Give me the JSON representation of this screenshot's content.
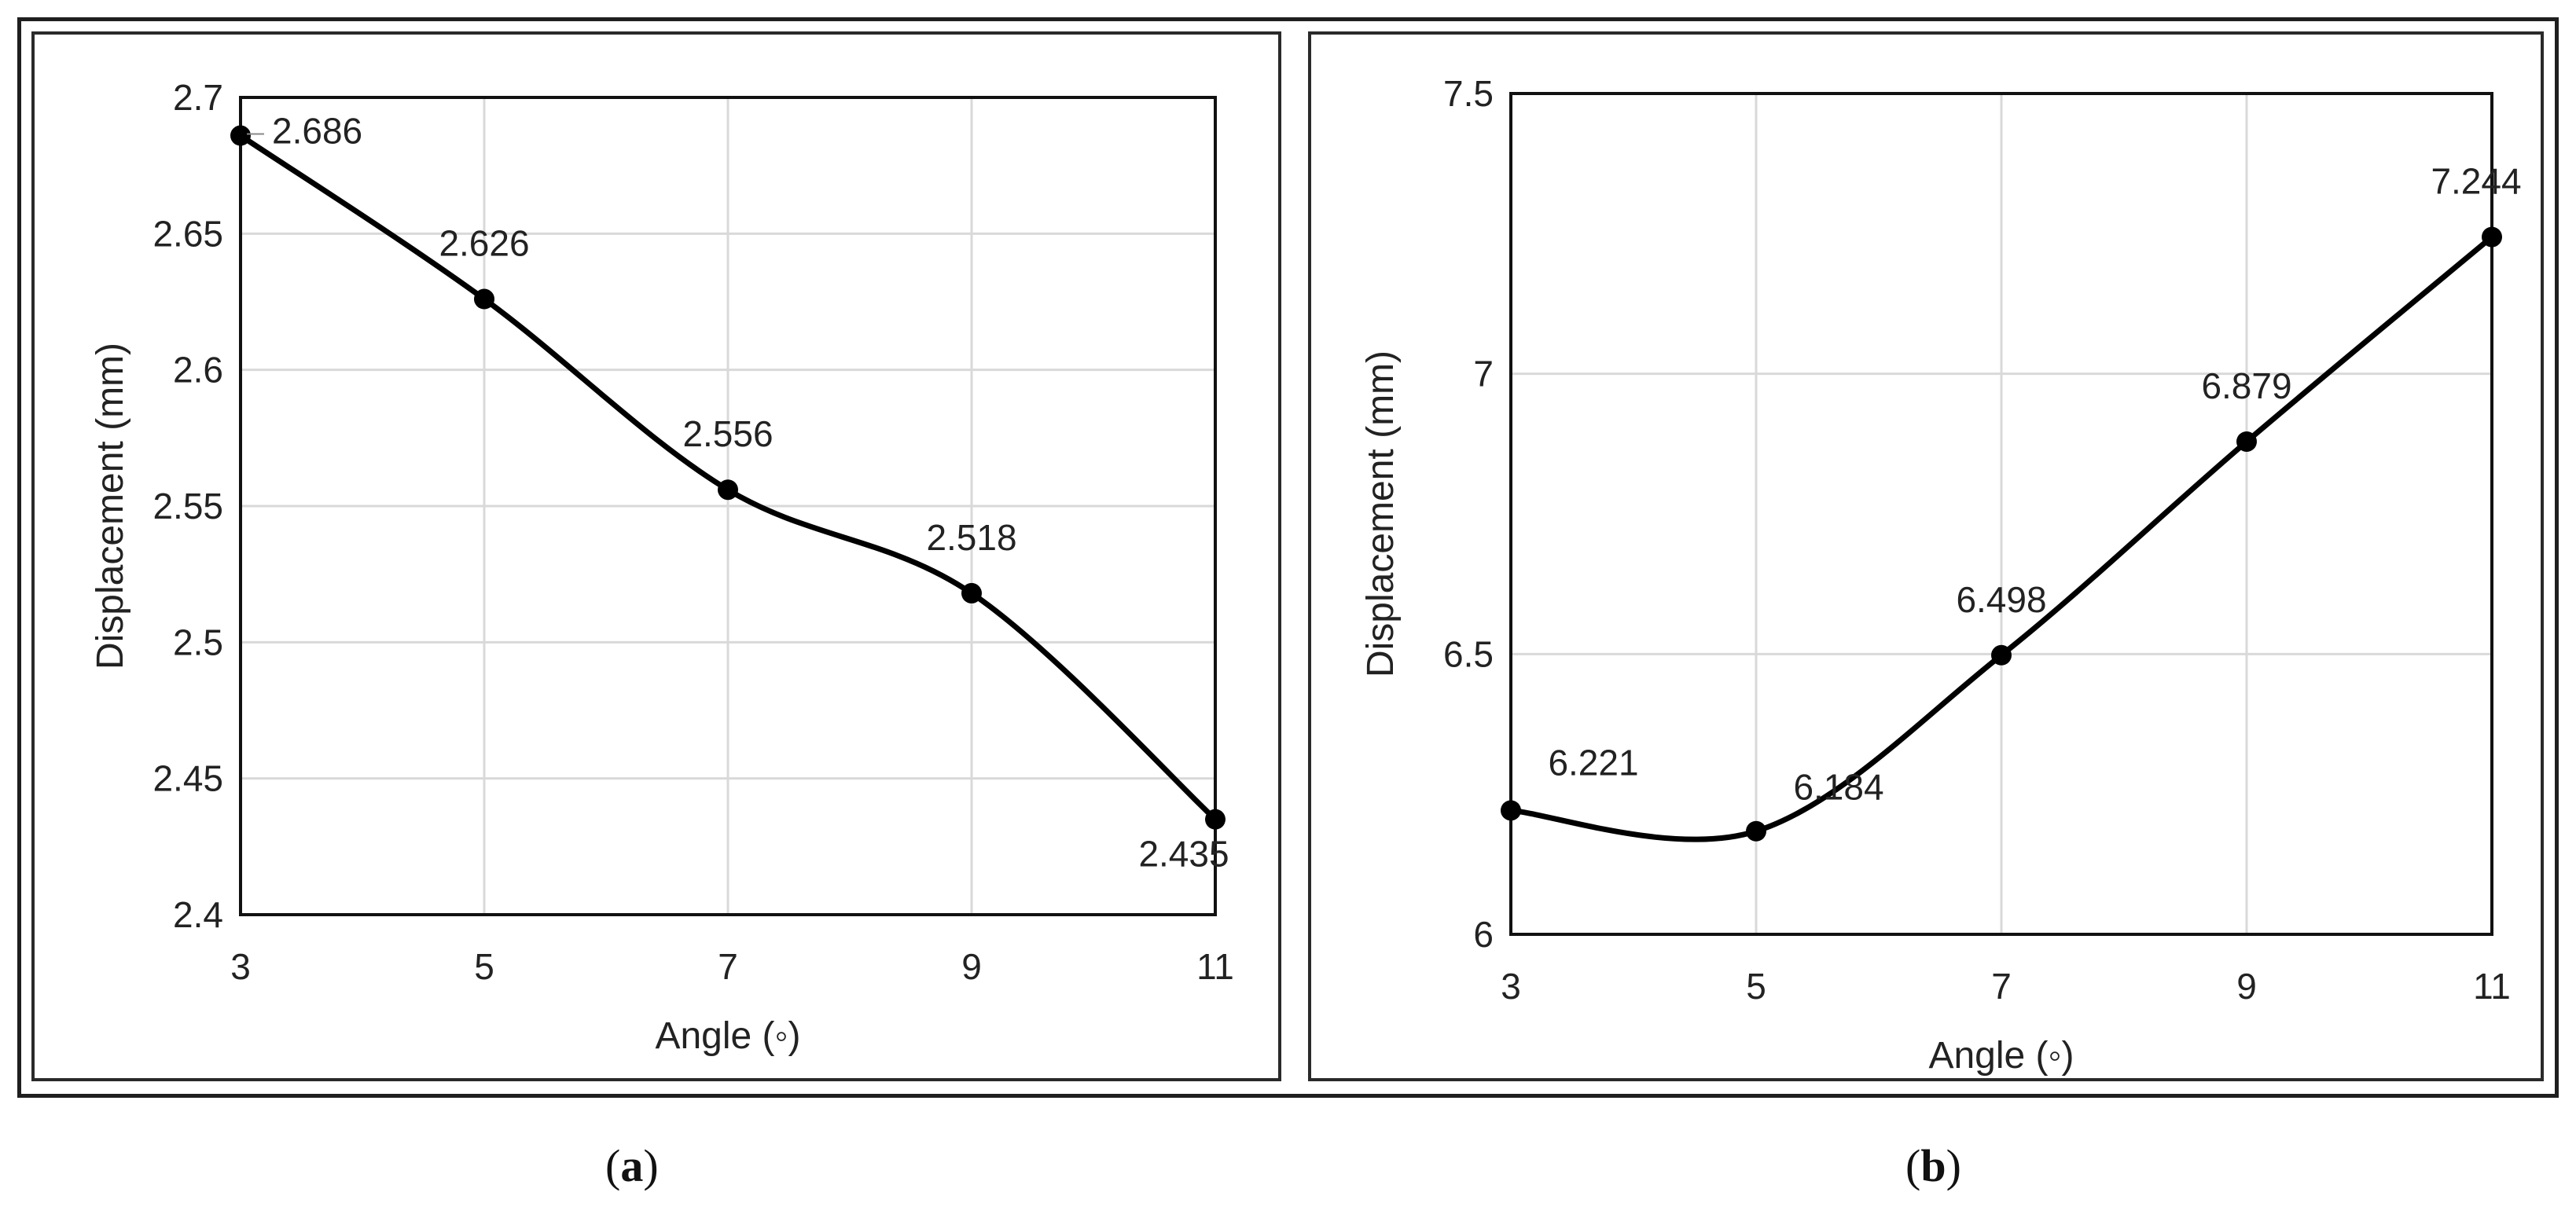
{
  "charts": {
    "a": {
      "caption_letter": "a"
    },
    "b": {
      "caption_letter": "b"
    }
  },
  "chart_data": [
    {
      "type": "line",
      "xlabel": "Angle (◦)",
      "ylabel": "Displacement (mm)",
      "x": [
        3,
        5,
        7,
        9,
        11
      ],
      "x_ticks": [
        "3",
        "5",
        "7",
        "9",
        "11"
      ],
      "y_ticks": [
        "2.4",
        "2.45",
        "2.5",
        "2.55",
        "2.6",
        "2.65",
        "2.7"
      ],
      "ylim": [
        2.4,
        2.7
      ],
      "xlim": [
        3,
        11
      ],
      "series": [
        {
          "values": [
            2.686,
            2.626,
            2.556,
            2.518,
            2.435
          ],
          "labels": [
            "2.686",
            "2.626",
            "2.556",
            "2.518",
            "2.435"
          ]
        }
      ],
      "smooth": true,
      "grid": true,
      "color": "#000000"
    },
    {
      "type": "line",
      "xlabel": "Angle (◦)",
      "ylabel": "Displacement (mm)",
      "x": [
        3,
        5,
        7,
        9,
        11
      ],
      "x_ticks": [
        "3",
        "5",
        "7",
        "9",
        "11"
      ],
      "y_ticks": [
        "6",
        "6.5",
        "7",
        "7.5"
      ],
      "ylim": [
        6,
        7.5
      ],
      "xlim": [
        3,
        11
      ],
      "series": [
        {
          "values": [
            6.221,
            6.184,
            6.498,
            6.879,
            7.244
          ],
          "labels": [
            "6.221",
            "6.184",
            "6.498",
            "6.879",
            "7.244"
          ]
        }
      ],
      "smooth": true,
      "grid": true,
      "color": "#000000"
    }
  ]
}
